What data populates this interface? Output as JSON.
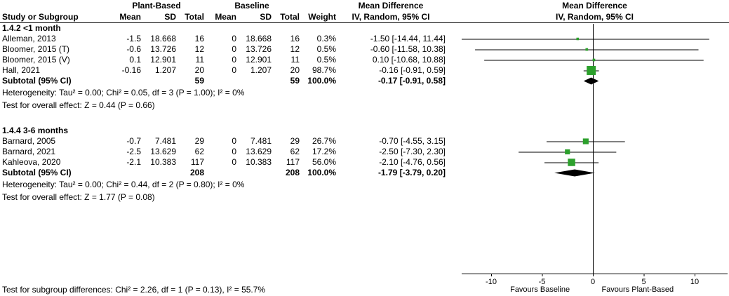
{
  "colors": {
    "square": "#2ca02c",
    "diamond": "#000000",
    "line": "#000000"
  },
  "chart_data": {
    "type": "forest",
    "effect_measure": "Mean Difference",
    "method_label": "IV, Random, 95% CI",
    "groups": [
      "Plant-Based",
      "Baseline"
    ],
    "columns": {
      "study": "Study or Subgroup",
      "mean": "Mean",
      "sd": "SD",
      "total": "Total",
      "weight": "Weight"
    },
    "xlim": [
      -10,
      10
    ],
    "ticks": [
      -10,
      -5,
      0,
      5,
      10
    ],
    "favours_left": "Favours Baseline",
    "favours_right": "Favours Plant-Based",
    "subgroups": [
      {
        "title": "1.4.2 <1 month",
        "studies": [
          {
            "name": "Alleman, 2013",
            "mean1": "-1.5",
            "sd1": "18.668",
            "total1": "16",
            "mean2": "0",
            "sd2": "18.668",
            "total2": "16",
            "weight": "0.3%",
            "weight_pct": 0.3,
            "ci_text": "-1.50 [-14.44, 11.44]",
            "est": -1.5,
            "lo": -14.44,
            "hi": 11.44
          },
          {
            "name": "Bloomer, 2015 (T)",
            "mean1": "-0.6",
            "sd1": "13.726",
            "total1": "12",
            "mean2": "0",
            "sd2": "13.726",
            "total2": "12",
            "weight": "0.5%",
            "weight_pct": 0.5,
            "ci_text": "-0.60 [-11.58, 10.38]",
            "est": -0.6,
            "lo": -11.58,
            "hi": 10.38
          },
          {
            "name": "Bloomer, 2015 (V)",
            "mean1": "0.1",
            "sd1": "12.901",
            "total1": "11",
            "mean2": "0",
            "sd2": "12.901",
            "total2": "11",
            "weight": "0.5%",
            "weight_pct": 0.5,
            "ci_text": "0.10 [-10.68, 10.88]",
            "est": 0.1,
            "lo": -10.68,
            "hi": 10.88
          },
          {
            "name": "Hall, 2021",
            "mean1": "-0.16",
            "sd1": "1.207",
            "total1": "20",
            "mean2": "0",
            "sd2": "1.207",
            "total2": "20",
            "weight": "98.7%",
            "weight_pct": 98.7,
            "ci_text": "-0.16 [-0.91, 0.59]",
            "est": -0.16,
            "lo": -0.91,
            "hi": 0.59
          }
        ],
        "subtotal": {
          "label": "Subtotal (95% CI)",
          "total1": "59",
          "total2": "59",
          "weight": "100.0%",
          "ci_text": "-0.17 [-0.91, 0.58]",
          "est": -0.17,
          "lo": -0.91,
          "hi": 0.58
        },
        "heterogeneity": "Heterogeneity: Tau² = 0.00; Chi² = 0.05, df = 3 (P = 1.00); I² = 0%",
        "overall_effect": "Test for overall effect: Z = 0.44 (P = 0.66)"
      },
      {
        "title": "1.4.4 3-6 months",
        "studies": [
          {
            "name": "Barnard, 2005",
            "mean1": "-0.7",
            "sd1": "7.481",
            "total1": "29",
            "mean2": "0",
            "sd2": "7.481",
            "total2": "29",
            "weight": "26.7%",
            "weight_pct": 26.7,
            "ci_text": "-0.70 [-4.55, 3.15]",
            "est": -0.7,
            "lo": -4.55,
            "hi": 3.15
          },
          {
            "name": "Barnard, 2021",
            "mean1": "-2.5",
            "sd1": "13.629",
            "total1": "62",
            "mean2": "0",
            "sd2": "13.629",
            "total2": "62",
            "weight": "17.2%",
            "weight_pct": 17.2,
            "ci_text": "-2.50 [-7.30, 2.30]",
            "est": -2.5,
            "lo": -7.3,
            "hi": 2.3
          },
          {
            "name": "Kahleova, 2020",
            "mean1": "-2.1",
            "sd1": "10.383",
            "total1": "117",
            "mean2": "0",
            "sd2": "10.383",
            "total2": "117",
            "weight": "56.0%",
            "weight_pct": 56.0,
            "ci_text": "-2.10 [-4.76, 0.56]",
            "est": -2.1,
            "lo": -4.76,
            "hi": 0.56
          }
        ],
        "subtotal": {
          "label": "Subtotal (95% CI)",
          "total1": "208",
          "total2": "208",
          "weight": "100.0%",
          "ci_text": "-1.79 [-3.79, 0.20]",
          "est": -1.79,
          "lo": -3.79,
          "hi": 0.2
        },
        "heterogeneity": "Heterogeneity: Tau² = 0.00; Chi² = 0.44, df = 2 (P = 0.80); I² = 0%",
        "overall_effect": "Test for overall effect: Z = 1.77 (P = 0.08)"
      }
    ],
    "subgroup_difference": "Test for subgroup differences: Chi² = 2.26, df = 1 (P = 0.13), I² = 55.7%"
  }
}
